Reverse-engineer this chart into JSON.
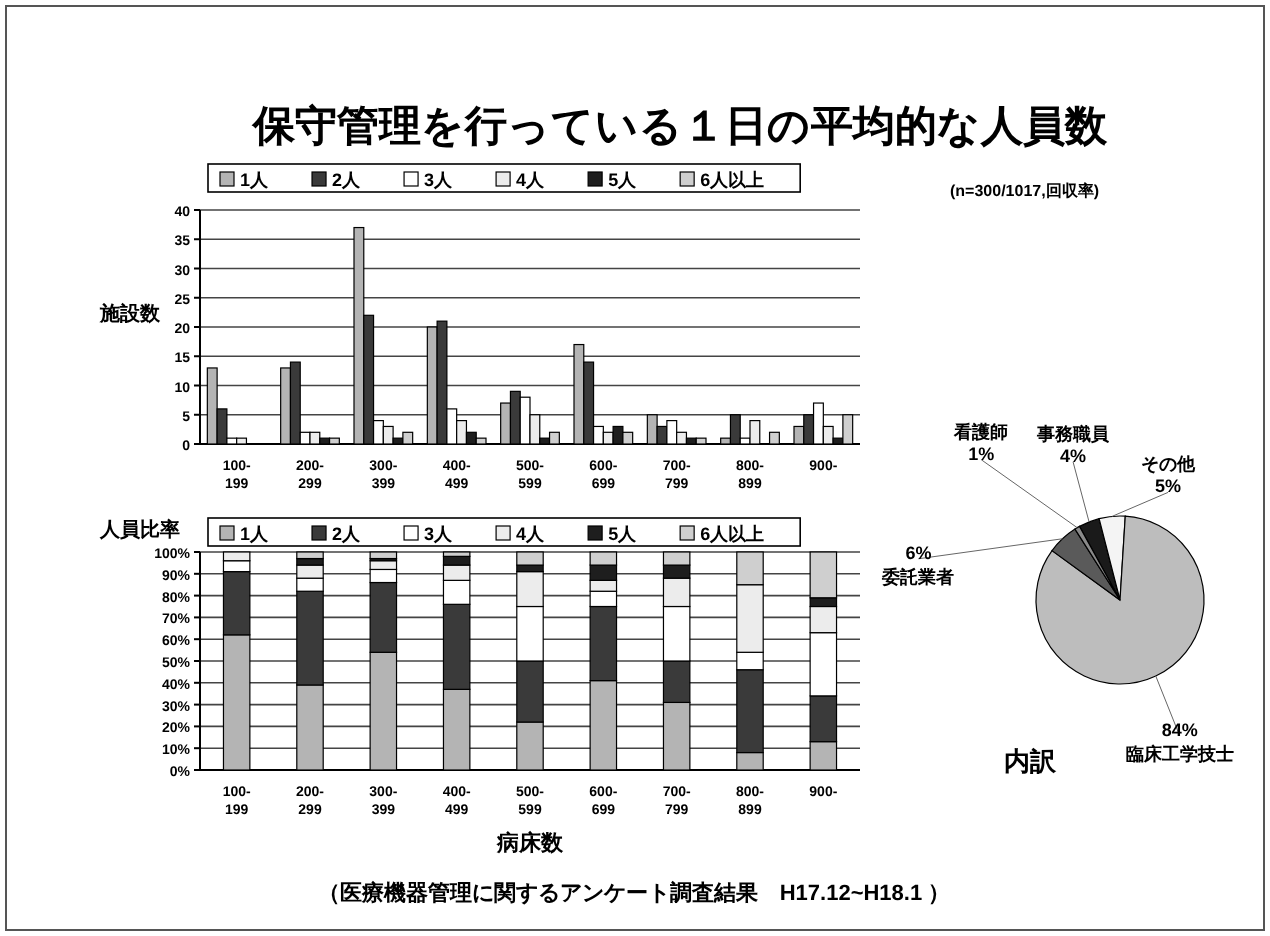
{
  "chart_data": [
    {
      "type": "bar",
      "title": "保守管理を行っている１日の平均的な人員数",
      "annotations": [
        "(n=300/1017,回収率)"
      ],
      "ylabel": "施設数",
      "legend": "top",
      "grid": "y",
      "categories": [
        "100-199",
        "200-299",
        "300-399",
        "400-499",
        "500-599",
        "600-699",
        "700-799",
        "800-899",
        "900-"
      ],
      "ylim": [
        0,
        40
      ],
      "yticks": [
        0,
        5,
        10,
        15,
        20,
        25,
        30,
        35,
        40
      ],
      "series": [
        {
          "name": "1人",
          "color": "#b4b4b4",
          "values": [
            13,
            13,
            37,
            20,
            7,
            17,
            5,
            1,
            3
          ]
        },
        {
          "name": "2人",
          "color": "#3a3a3a",
          "values": [
            6,
            14,
            22,
            21,
            9,
            14,
            3,
            5,
            5
          ]
        },
        {
          "name": "3人",
          "color": "#ffffff",
          "values": [
            1,
            2,
            4,
            6,
            8,
            3,
            4,
            1,
            7
          ]
        },
        {
          "name": "4人",
          "color": "#ececec",
          "values": [
            1,
            2,
            3,
            4,
            5,
            2,
            2,
            4,
            3
          ]
        },
        {
          "name": "5人",
          "color": "#1e1e1e",
          "values": [
            0,
            1,
            1,
            2,
            1,
            3,
            1,
            0,
            1
          ]
        },
        {
          "name": "6人以上",
          "color": "#cfcfcf",
          "values": [
            0,
            1,
            2,
            1,
            2,
            2,
            1,
            2,
            5
          ]
        }
      ]
    },
    {
      "type": "bar",
      "stacked": true,
      "ylabel": "人員比率",
      "xlabel": "病床数",
      "legend": "top",
      "grid": "y",
      "annotations": [
        "（医療機器管理に関するアンケート調査結果　H17.12~H18.1 ）"
      ],
      "categories": [
        "100-199",
        "200-299",
        "300-399",
        "400-499",
        "500-599",
        "600-699",
        "700-799",
        "800-899",
        "900-"
      ],
      "ylim": [
        0,
        100
      ],
      "yticks": [
        {
          "value": 0,
          "label": "0%"
        },
        {
          "value": 10,
          "label": "10%"
        },
        {
          "value": 20,
          "label": "20%"
        },
        {
          "value": 30,
          "label": "30%"
        },
        {
          "value": 40,
          "label": "40%"
        },
        {
          "value": 50,
          "label": "50%"
        },
        {
          "value": 60,
          "label": "60%"
        },
        {
          "value": 70,
          "label": "70%"
        },
        {
          "value": 80,
          "label": "80%"
        },
        {
          "value": 90,
          "label": "90%"
        },
        {
          "value": 100,
          "label": "100%"
        }
      ],
      "series": [
        {
          "name": "1人",
          "color": "#b4b4b4",
          "values": [
            62,
            39,
            54,
            37,
            22,
            41,
            31,
            8,
            13
          ]
        },
        {
          "name": "2人",
          "color": "#3a3a3a",
          "values": [
            29,
            43,
            32,
            39,
            28,
            34,
            19,
            38,
            21
          ]
        },
        {
          "name": "3人",
          "color": "#ffffff",
          "values": [
            5,
            6,
            6,
            11,
            25,
            7,
            25,
            8,
            29
          ]
        },
        {
          "name": "4人",
          "color": "#ececec",
          "values": [
            4,
            6,
            4,
            7,
            16,
            5,
            13,
            31,
            12
          ]
        },
        {
          "name": "5人",
          "color": "#1e1e1e",
          "values": [
            0,
            3,
            1,
            4,
            3,
            7,
            6,
            0,
            4
          ]
        },
        {
          "name": "6人以上",
          "color": "#cfcfcf",
          "values": [
            0,
            3,
            3,
            2,
            6,
            6,
            6,
            15,
            21
          ]
        }
      ]
    },
    {
      "type": "pie",
      "title": "内訳",
      "categories": [
        "事務職員",
        "その他",
        "臨床工学技士",
        "委託業者",
        "看護師"
      ],
      "values": [
        4,
        5,
        84,
        6,
        1
      ],
      "value_labels": [
        "4%",
        "5%",
        "84%",
        "6%",
        "1%"
      ],
      "colors": [
        "#1a1a1a",
        "#f4f4f4",
        "#bdbdbd",
        "#5a5a5a",
        "#8a8a8a"
      ]
    }
  ]
}
